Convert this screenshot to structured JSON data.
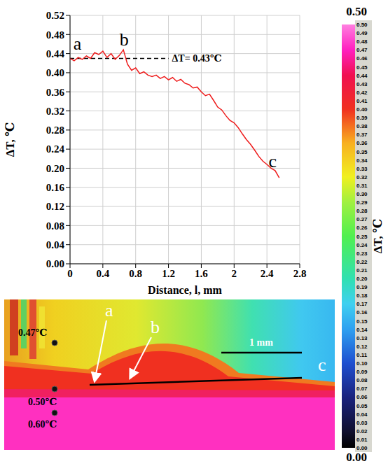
{
  "chart_data": {
    "type": "line",
    "x_label": "Distance, l, mm",
    "y_label": "ΔT, ℃",
    "xlim": [
      0,
      2.8
    ],
    "xticks": [
      0,
      0.4,
      0.8,
      1.2,
      1.6,
      2.0,
      2.4,
      2.8
    ],
    "ylim": [
      0,
      0.52
    ],
    "yticks": [
      {
        "value": 0,
        "label": "0.00"
      },
      0.04,
      0.08,
      0.12,
      0.16,
      {
        "value": 0.2,
        "label": "0.20"
      },
      0.24,
      0.28,
      0.32,
      0.36,
      {
        "value": 0.4,
        "label": "0.40"
      },
      0.44,
      0.48,
      0.52
    ],
    "grid": true,
    "color": "#ee1c1c",
    "x": [
      0,
      0.05,
      0.1,
      0.15,
      0.2,
      0.25,
      0.3,
      0.35,
      0.4,
      0.45,
      0.5,
      0.55,
      0.6,
      0.65,
      0.7,
      0.75,
      0.8,
      0.85,
      0.9,
      0.95,
      1.0,
      1.05,
      1.1,
      1.15,
      1.2,
      1.25,
      1.3,
      1.35,
      1.4,
      1.45,
      1.5,
      1.55,
      1.6,
      1.65,
      1.7,
      1.75,
      1.8,
      1.85,
      1.9,
      1.95,
      2.0,
      2.05,
      2.1,
      2.15,
      2.2,
      2.25,
      2.3,
      2.35,
      2.4,
      2.45,
      2.5,
      2.55
    ],
    "values": [
      0.43,
      0.425,
      0.432,
      0.428,
      0.435,
      0.43,
      0.442,
      0.438,
      0.445,
      0.432,
      0.44,
      0.428,
      0.436,
      0.448,
      0.418,
      0.405,
      0.41,
      0.398,
      0.402,
      0.395,
      0.392,
      0.395,
      0.388,
      0.392,
      0.385,
      0.39,
      0.382,
      0.386,
      0.378,
      0.375,
      0.368,
      0.37,
      0.36,
      0.352,
      0.355,
      0.342,
      0.328,
      0.322,
      0.31,
      0.3,
      0.295,
      0.285,
      0.272,
      0.26,
      0.25,
      0.238,
      0.225,
      0.215,
      0.208,
      0.2,
      0.195,
      0.18
    ],
    "reference_line": {
      "y": 0.43,
      "x": [
        0,
        1.2
      ],
      "label": "ΔT= 0.43℃",
      "line_style": "dashed"
    },
    "annotations": [
      {
        "text": "a",
        "x": 0.09,
        "y": 0.462
      },
      {
        "text": "b",
        "x": 0.66,
        "y": 0.47
      },
      {
        "text": "c",
        "x": 2.47,
        "y": 0.215
      }
    ]
  },
  "colorbar": {
    "label": "ΔT, ℃",
    "range": [
      0,
      0.5
    ],
    "end_labels": [
      "0.00",
      "0.50"
    ],
    "ticks": [
      {
        "value": 0,
        "label": "0.00"
      },
      0.01,
      0.02,
      0.03,
      0.04,
      0.05,
      0.06,
      0.07,
      0.08,
      0.09,
      {
        "value": 0.1,
        "label": "0.10"
      },
      0.11,
      0.12,
      0.13,
      0.14,
      0.15,
      0.16,
      0.17,
      0.18,
      0.19,
      {
        "value": 0.2,
        "label": "0.20"
      },
      0.21,
      0.22,
      0.23,
      0.24,
      0.25,
      0.26,
      0.27,
      0.28,
      0.29,
      {
        "value": 0.3,
        "label": "0.30"
      },
      0.31,
      0.32,
      0.33,
      0.34,
      0.35,
      0.36,
      0.37,
      0.38,
      0.39,
      {
        "value": 0.4,
        "label": "0.40"
      },
      0.41,
      0.42,
      0.43,
      0.44,
      0.45,
      0.46,
      0.47,
      0.48,
      0.49,
      {
        "value": 0.5,
        "label": "0.50"
      }
    ],
    "colors": [
      {
        "value": 0,
        "color": "#000000"
      },
      {
        "value": 0.02,
        "color": "#101030"
      },
      {
        "value": 0.06,
        "color": "#1a237e"
      },
      {
        "value": 0.1,
        "color": "#1e4fd0"
      },
      {
        "value": 0.14,
        "color": "#2ea0f0"
      },
      {
        "value": 0.17,
        "color": "#3fd0f0"
      },
      {
        "value": 0.2,
        "color": "#30e0b0"
      },
      {
        "value": 0.25,
        "color": "#50f050"
      },
      {
        "value": 0.29,
        "color": "#a0f040"
      },
      {
        "value": 0.32,
        "color": "#f0f020"
      },
      {
        "value": 0.36,
        "color": "#f8b020"
      },
      {
        "value": 0.4,
        "color": "#f03020"
      },
      {
        "value": 0.44,
        "color": "#f01050"
      },
      {
        "value": 0.47,
        "color": "#ff20c0"
      },
      {
        "value": 0.5,
        "color": "#ff80e0"
      }
    ]
  },
  "thermal_image": {
    "point_labels": [
      "0.47℃",
      "0.50℃",
      "0.60℃"
    ],
    "markers": [
      "a",
      "b",
      "c"
    ],
    "scale_bar": "1 mm"
  }
}
